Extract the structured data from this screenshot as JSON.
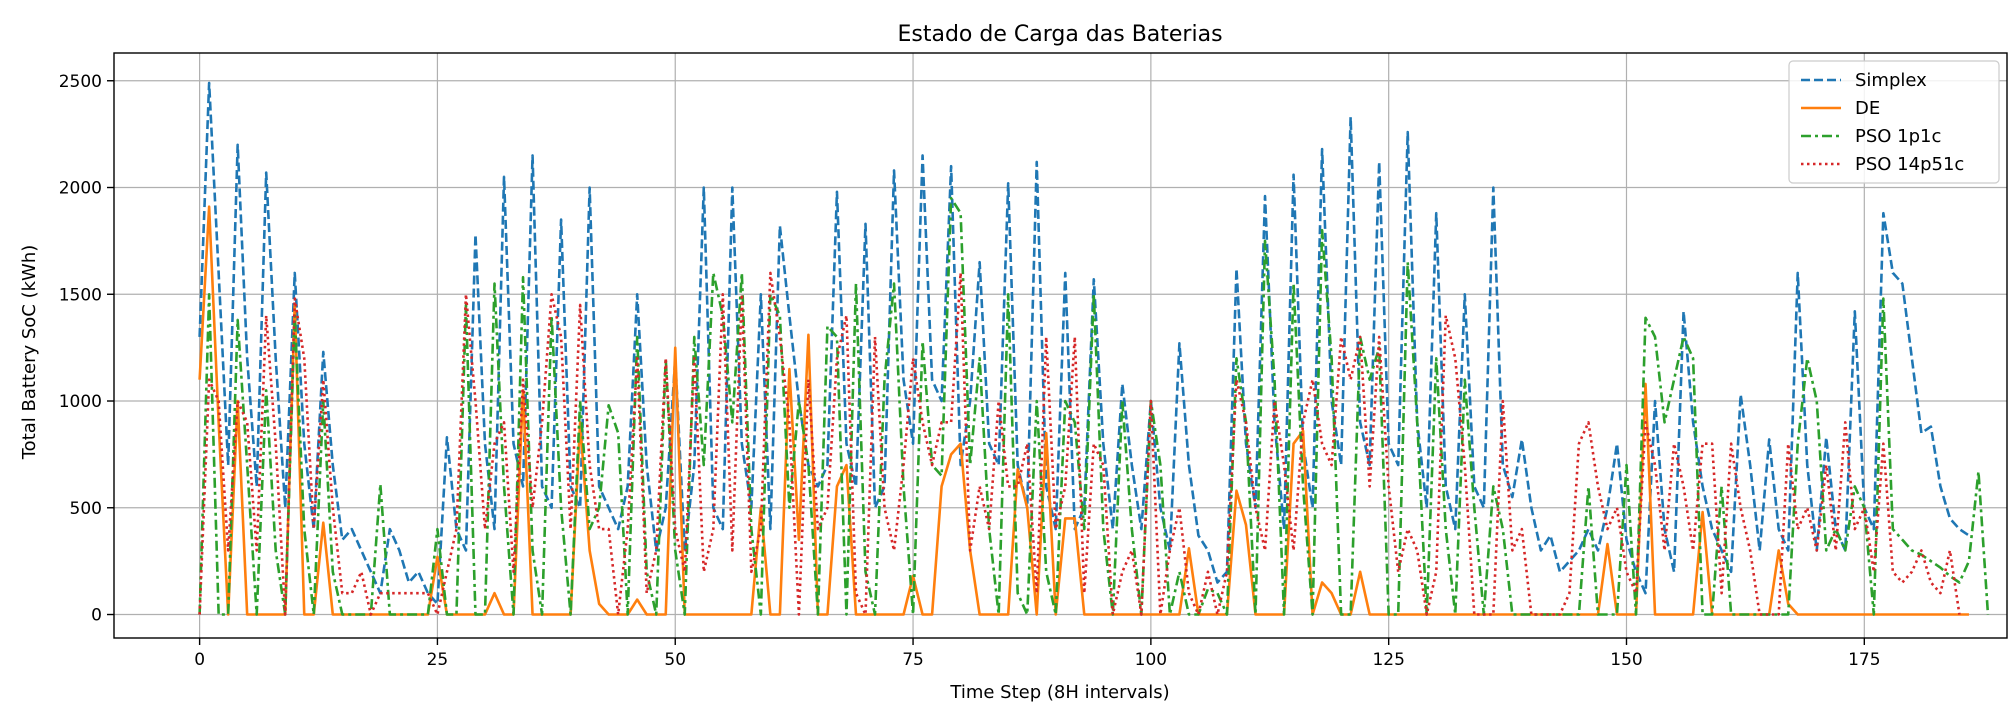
{
  "chart_data": {
    "type": "line",
    "title": "Estado de Carga das Baterias",
    "xlabel": "Time Step (8H intervals)",
    "ylabel": "Total Battery SoC (kWh)",
    "xlim": [
      -9,
      190
    ],
    "ylim": [
      -110,
      2630
    ],
    "x_ticks": [
      0,
      25,
      50,
      75,
      100,
      125,
      150,
      175
    ],
    "y_ticks": [
      0,
      500,
      1000,
      1500,
      2000,
      2500
    ],
    "grid": true,
    "legend_position": "top-right",
    "x_start": 0,
    "x_step": 1,
    "series": [
      {
        "name": "Simplex",
        "color": "#1f77b4",
        "dash": "dashed",
        "values": [
          1300,
          2490,
          1600,
          700,
          2200,
          1200,
          600,
          2070,
          1200,
          500,
          1600,
          800,
          400,
          1230,
          700,
          350,
          400,
          300,
          200,
          100,
          400,
          300,
          150,
          200,
          100,
          50,
          830,
          400,
          300,
          1780,
          800,
          400,
          2050,
          800,
          600,
          2150,
          600,
          500,
          1850,
          600,
          500,
          2000,
          600,
          500,
          400,
          600,
          1500,
          700,
          300,
          500,
          1200,
          300,
          700,
          2000,
          500,
          400,
          2000,
          800,
          500,
          1500,
          400,
          1820,
          1400,
          1000,
          700,
          600,
          700,
          1980,
          800,
          600,
          1830,
          500,
          600,
          2080,
          1100,
          800,
          2150,
          1100,
          1000,
          2100,
          700,
          1000,
          1650,
          800,
          700,
          2020,
          700,
          500,
          2120,
          600,
          400,
          1600,
          400,
          500,
          1570,
          800,
          400,
          1080,
          700,
          400,
          1000,
          500,
          300,
          1270,
          700,
          370,
          300,
          150,
          200,
          1620,
          800,
          500,
          1960,
          900,
          400,
          2060,
          800,
          500,
          2180,
          1000,
          700,
          2330,
          900,
          700,
          2120,
          800,
          700,
          2260,
          900,
          500,
          1880,
          600,
          400,
          1500,
          600,
          500,
          2000,
          700,
          550,
          820,
          500,
          300,
          370,
          200,
          250,
          300,
          400,
          300,
          500,
          800,
          350,
          200,
          100,
          1000,
          400,
          200,
          1420,
          900,
          600,
          400,
          300,
          200,
          1030,
          700,
          300,
          820,
          400,
          300,
          1600,
          700,
          300,
          830,
          400,
          300,
          1420,
          500,
          400,
          1880,
          1600,
          1550,
          1200,
          850,
          880,
          600,
          450,
          400,
          370
        ],
        "values_note": ""
      },
      {
        "name": "DE",
        "color": "#ff7f0e",
        "dash": "solid",
        "values": [
          1100,
          1910,
          900,
          0,
          1000,
          0,
          0,
          0,
          0,
          0,
          1450,
          0,
          0,
          430,
          0,
          0,
          0,
          0,
          0,
          0,
          0,
          0,
          0,
          0,
          0,
          270,
          0,
          0,
          0,
          0,
          0,
          100,
          0,
          0,
          1050,
          0,
          0,
          0,
          0,
          0,
          900,
          300,
          50,
          0,
          0,
          0,
          70,
          0,
          0,
          0,
          1250,
          0,
          0,
          0,
          0,
          0,
          0,
          0,
          0,
          500,
          0,
          0,
          1150,
          350,
          1310,
          0,
          0,
          600,
          700,
          0,
          0,
          0,
          0,
          0,
          0,
          180,
          0,
          0,
          600,
          750,
          800,
          300,
          0,
          0,
          0,
          0,
          680,
          500,
          0,
          850,
          0,
          450,
          450,
          0,
          0,
          0,
          0,
          0,
          0,
          0,
          0,
          0,
          0,
          0,
          310,
          0,
          0,
          0,
          0,
          580,
          420,
          0,
          0,
          0,
          0,
          800,
          860,
          0,
          150,
          100,
          0,
          0,
          200,
          0,
          0,
          0,
          0,
          0,
          0,
          0,
          0,
          0,
          0,
          0,
          0,
          0,
          0,
          0,
          0,
          0,
          0,
          0,
          0,
          0,
          0,
          0,
          0,
          0,
          330,
          0,
          0,
          0,
          1080,
          0,
          0,
          0,
          0,
          0,
          480,
          0,
          0,
          0,
          0,
          0,
          0,
          0,
          300,
          50,
          0,
          0,
          0,
          0,
          0,
          0,
          0,
          0,
          0,
          0,
          0,
          0,
          0,
          0,
          0,
          0,
          0,
          0,
          0
        ]
      },
      {
        "name": "PSO 1p1c",
        "color": "#2ca02c",
        "dash": "dashdot",
        "values": [
          0,
          1500,
          0,
          0,
          1380,
          700,
          0,
          1050,
          300,
          0,
          1400,
          400,
          0,
          1000,
          200,
          0,
          0,
          0,
          0,
          610,
          0,
          0,
          0,
          0,
          0,
          400,
          0,
          0,
          1450,
          0,
          0,
          1550,
          600,
          0,
          1580,
          300,
          0,
          1400,
          500,
          0,
          1000,
          400,
          500,
          980,
          850,
          0,
          1300,
          200,
          0,
          1200,
          300,
          0,
          1300,
          700,
          1600,
          1400,
          900,
          1600,
          400,
          0,
          1500,
          1400,
          500,
          1000,
          700,
          0,
          1350,
          1300,
          0,
          1550,
          200,
          0,
          1100,
          1550,
          600,
          0,
          1280,
          700,
          650,
          1950,
          1880,
          700,
          1200,
          400,
          0,
          1500,
          100,
          0,
          1000,
          200,
          0,
          1000,
          900,
          400,
          1500,
          400,
          0,
          1000,
          400,
          0,
          1000,
          700,
          0,
          200,
          0,
          0,
          120,
          100,
          0,
          1200,
          900,
          0,
          1750,
          1100,
          0,
          1550,
          600,
          0,
          1800,
          1200,
          0,
          0,
          1300,
          1100,
          1250,
          0,
          0,
          1650,
          900,
          0,
          1200,
          400,
          0,
          1100,
          500,
          0,
          600,
          400,
          0,
          0,
          0,
          0,
          0,
          0,
          0,
          0,
          600,
          0,
          0,
          0,
          700,
          0,
          1390,
          1300,
          900,
          1100,
          1300,
          1200,
          0,
          0,
          600,
          0,
          0,
          0,
          0,
          0,
          0,
          0,
          800,
          1200,
          1000,
          300,
          400,
          300,
          600,
          500,
          0,
          1480,
          400,
          350,
          300,
          280,
          250,
          220,
          180,
          150,
          250,
          670,
          0
        ]
      },
      {
        "name": "PSO 14p51c",
        "color": "#d62728",
        "dash": "dotted",
        "values": [
          0,
          1100,
          1000,
          300,
          1000,
          900,
          300,
          1400,
          800,
          0,
          1480,
          1200,
          400,
          1100,
          500,
          100,
          100,
          200,
          0,
          100,
          100,
          100,
          100,
          100,
          100,
          0,
          200,
          400,
          1500,
          1000,
          400,
          800,
          900,
          200,
          1100,
          500,
          900,
          1500,
          1300,
          400,
          1450,
          700,
          400,
          400,
          0,
          400,
          1200,
          100,
          300,
          1200,
          400,
          200,
          1200,
          200,
          400,
          1500,
          300,
          1500,
          200,
          400,
          1600,
          1300,
          900,
          0,
          1100,
          400,
          500,
          1200,
          1400,
          100,
          0,
          1300,
          500,
          300,
          700,
          1200,
          900,
          700,
          900,
          900,
          1600,
          300,
          600,
          400,
          1000,
          600,
          600,
          800,
          100,
          1300,
          400,
          600,
          1300,
          100,
          800,
          700,
          0,
          200,
          300,
          0,
          1000,
          0,
          300,
          500,
          100,
          0,
          200,
          0,
          200,
          1100,
          900,
          500,
          300,
          1000,
          700,
          300,
          900,
          1100,
          800,
          700,
          1300,
          1100,
          1300,
          600,
          1300,
          600,
          200,
          400,
          300,
          0,
          200,
          1400,
          1200,
          700,
          0,
          0,
          0,
          1000,
          300,
          400,
          0,
          0,
          0,
          0,
          100,
          800,
          900,
          600,
          400,
          500,
          200,
          100,
          900,
          700,
          300,
          800,
          600,
          300,
          800,
          800,
          100,
          800,
          500,
          300,
          0,
          0,
          0,
          800,
          400,
          500,
          300,
          700,
          300,
          900,
          400,
          500,
          200,
          800,
          200,
          150,
          200,
          300,
          150,
          100,
          300,
          0
        ]
      }
    ]
  }
}
